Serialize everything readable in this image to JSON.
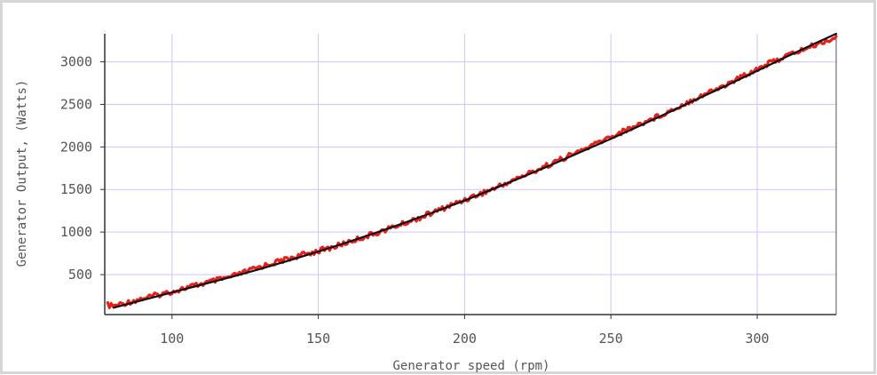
{
  "chart_data": {
    "type": "line",
    "title": "",
    "xlabel": "Generator speed (rpm)",
    "ylabel": "Generator Output, (Watts)",
    "xlim": [
      77,
      327
    ],
    "ylim": [
      30,
      3330
    ],
    "x_ticks": [
      100,
      150,
      200,
      250,
      300
    ],
    "y_ticks": [
      500,
      1000,
      1500,
      2000,
      2500,
      3000
    ],
    "grid": true,
    "grid_color": "#c8c8ff",
    "series": [
      {
        "name": "",
        "style": "noisy-measured",
        "color": "#e8201a",
        "x": [
          78,
          80,
          90,
          100,
          110,
          120,
          125,
          130,
          140,
          150,
          155,
          160,
          170,
          180,
          190,
          200,
          210,
          220,
          230,
          240,
          250,
          260,
          270,
          280,
          290,
          300,
          310,
          320,
          327
        ],
        "y": [
          140,
          130,
          220,
          300,
          390,
          470,
          530,
          590,
          690,
          780,
          820,
          880,
          990,
          1110,
          1240,
          1380,
          1510,
          1660,
          1810,
          1960,
          2120,
          2270,
          2420,
          2590,
          2740,
          2920,
          3070,
          3200,
          3290
        ]
      },
      {
        "name": "",
        "style": "fit",
        "color": "#111111",
        "x": [
          80,
          90,
          100,
          110,
          120,
          130,
          140,
          150,
          160,
          170,
          180,
          190,
          200,
          210,
          220,
          230,
          240,
          250,
          260,
          270,
          280,
          290,
          300,
          310,
          320,
          327
        ],
        "y": [
          110,
          200,
          290,
          380,
          470,
          565,
          665,
          770,
          880,
          995,
          1115,
          1240,
          1370,
          1510,
          1650,
          1795,
          1945,
          2095,
          2250,
          2410,
          2570,
          2730,
          2895,
          3060,
          3220,
          3330
        ]
      }
    ]
  }
}
